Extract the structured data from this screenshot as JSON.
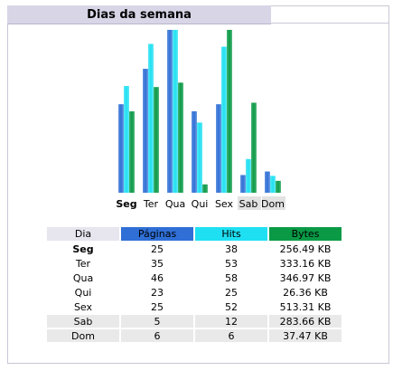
{
  "panel": {
    "title": "Dias da semana"
  },
  "chart_data": {
    "type": "bar",
    "categories": [
      "Seg",
      "Ter",
      "Qua",
      "Qui",
      "Sex",
      "Sab",
      "Dom"
    ],
    "series": [
      {
        "name": "Páginas",
        "values": [
          25,
          35,
          46,
          23,
          25,
          5,
          6
        ],
        "color": "#2f6fd6"
      },
      {
        "name": "Hits",
        "values": [
          38,
          53,
          58,
          25,
          52,
          12,
          6
        ],
        "color": "#1fe0f2"
      },
      {
        "name": "Bytes",
        "values": [
          256.49,
          333.16,
          346.97,
          26.36,
          513.31,
          283.66,
          37.47
        ],
        "color": "#0a9a46"
      }
    ],
    "highlight_category": "Seg",
    "weekend_categories": [
      "Sab",
      "Dom"
    ]
  },
  "table": {
    "headers": {
      "dia": "Dia",
      "paginas": "Páginas",
      "hits": "Hits",
      "bytes": "Bytes"
    },
    "rows": [
      {
        "dia": "Seg",
        "paginas": "25",
        "hits": "38",
        "bytes": "256.49 KB",
        "weekend": false,
        "bold": true
      },
      {
        "dia": "Ter",
        "paginas": "35",
        "hits": "53",
        "bytes": "333.16 KB",
        "weekend": false,
        "bold": false
      },
      {
        "dia": "Qua",
        "paginas": "46",
        "hits": "58",
        "bytes": "346.97 KB",
        "weekend": false,
        "bold": false
      },
      {
        "dia": "Qui",
        "paginas": "23",
        "hits": "25",
        "bytes": "26.36 KB",
        "weekend": false,
        "bold": false
      },
      {
        "dia": "Sex",
        "paginas": "25",
        "hits": "52",
        "bytes": "513.31 KB",
        "weekend": false,
        "bold": false
      },
      {
        "dia": "Sab",
        "paginas": "5",
        "hits": "12",
        "bytes": "283.66 KB",
        "weekend": true,
        "bold": false
      },
      {
        "dia": "Dom",
        "paginas": "6",
        "hits": "6",
        "bytes": "37.47 KB",
        "weekend": true,
        "bold": false
      }
    ]
  }
}
